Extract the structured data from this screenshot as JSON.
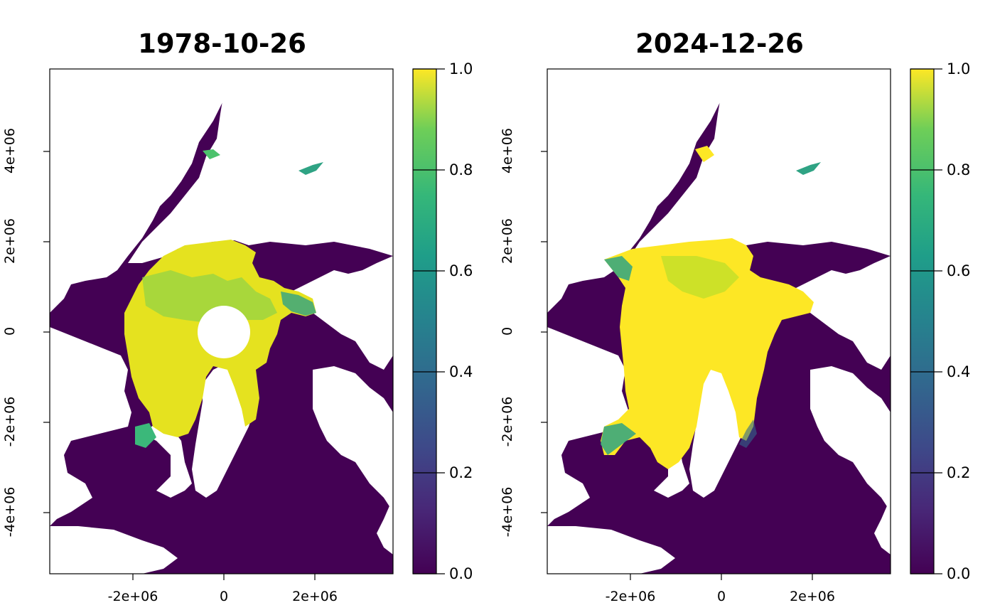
{
  "panels": [
    {
      "title": "1978-10-26",
      "x_ticks": [
        "-2e+06",
        "0",
        "2e+06"
      ],
      "y_ticks": [
        "4e+06",
        "2e+06",
        "0",
        "-2e+06",
        "-4e+06"
      ],
      "colorbar_ticks": [
        "1.0",
        "0.8",
        "0.6",
        "0.4",
        "0.2",
        "0.0"
      ]
    },
    {
      "title": "2024-12-26",
      "x_ticks": [
        "-2e+06",
        "0",
        "2e+06"
      ],
      "y_ticks": [
        "4e+06",
        "2e+06",
        "0",
        "-2e+06",
        "-4e+06"
      ],
      "colorbar_ticks": [
        "1.0",
        "0.8",
        "0.6",
        "0.4",
        "0.2",
        "0.0"
      ]
    }
  ],
  "colors": {
    "ocean": "#440154",
    "land": "#ffffff",
    "ice_high": "#fde725",
    "ice_mid": "#a0da39",
    "ice_low": "#21918c",
    "frame": "#000000"
  },
  "colormap": "viridis"
}
